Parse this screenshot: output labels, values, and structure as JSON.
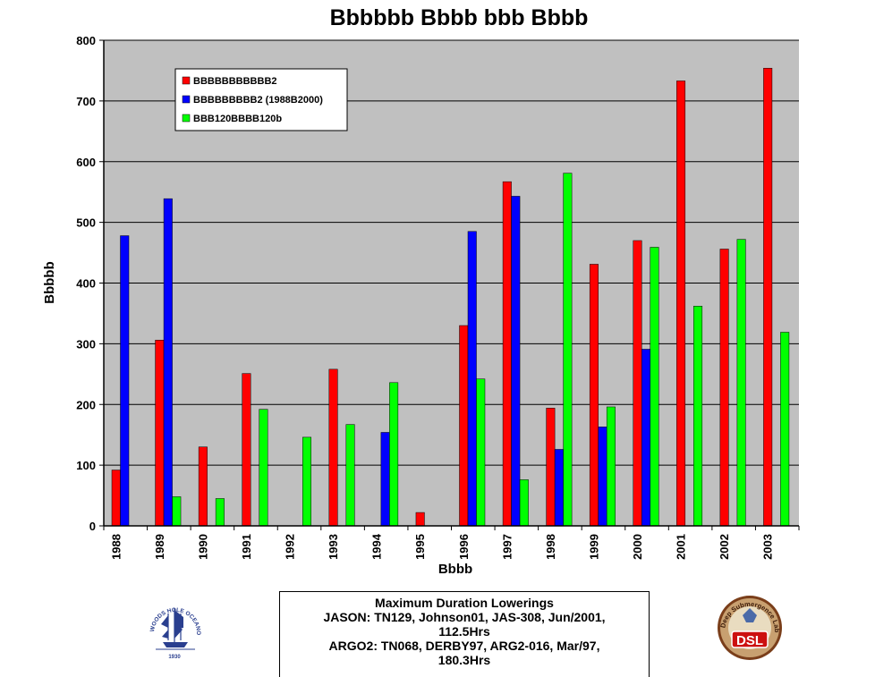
{
  "chart_data": {
    "type": "bar",
    "title": "Bbbbbb Bbbb bbb Bbbb",
    "xlabel": "Bbbb",
    "ylabel": "Bbbbb",
    "ylim": [
      0,
      800
    ],
    "yticks": [
      0,
      100,
      200,
      300,
      400,
      500,
      600,
      700,
      800
    ],
    "categories": [
      "1988",
      "1989",
      "1990",
      "1991",
      "1992",
      "1993",
      "1994",
      "1995",
      "1996",
      "1997",
      "1998",
      "1999",
      "2000",
      "2001",
      "2002",
      "2003"
    ],
    "series": [
      {
        "name": "BBBBBBBBBBB2",
        "color": "#ff0000",
        "values": [
          92,
          306,
          130,
          251,
          0,
          258,
          0,
          22,
          330,
          567,
          194,
          431,
          470,
          733,
          456,
          754
        ]
      },
      {
        "name": "BBBBBBBBB2 (1988B2000)",
        "color": "#0000ff",
        "values": [
          478,
          539,
          0,
          0,
          0,
          0,
          154,
          0,
          485,
          543,
          126,
          163,
          291,
          0,
          0,
          0
        ]
      },
      {
        "name": "BBB120BBBB120b",
        "color": "#00ff00",
        "values": [
          0,
          48,
          45,
          192,
          146,
          167,
          236,
          0,
          242,
          76,
          581,
          196,
          459,
          362,
          472,
          319
        ]
      }
    ],
    "grid": true,
    "legend_position": "top-left",
    "plot_background": "#c0c0c0"
  },
  "info_box": {
    "heading": "Maximum Duration Lowerings",
    "line1": "JASON:  TN129,  Johnson01,  JAS-308,  Jun/2001,",
    "line2": "112.5Hrs",
    "line3": "ARGO2:  TN068,  DERBY97,  ARG2-016,  Mar/97,",
    "line4": "180.3Hrs"
  },
  "logos": {
    "left": {
      "icon": "whoi-ship-seal-icon",
      "text": "WOODS HOLE OCEANOGRAPHIC INSTITUTION",
      "year": "1930"
    },
    "right": {
      "icon": "dsl-badge-icon",
      "text": "Deep Submergence Laboratory",
      "abbrev": "DSL"
    }
  }
}
